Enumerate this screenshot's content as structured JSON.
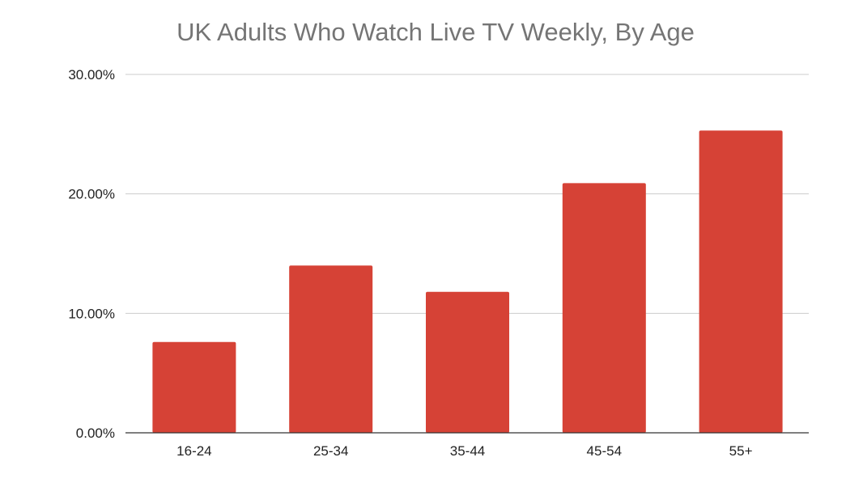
{
  "chart_data": {
    "type": "bar",
    "title": "UK Adults Who Watch Live TV Weekly, By Age",
    "xlabel": "",
    "ylabel": "",
    "categories": [
      "16-24",
      "25-34",
      "35-44",
      "45-54",
      "55+"
    ],
    "values": [
      7.6,
      14.0,
      11.8,
      20.9,
      25.3
    ],
    "ylim": [
      0,
      30
    ],
    "yticks": [
      0,
      10,
      20,
      30
    ],
    "ytick_labels": [
      "0.00%",
      "10.00%",
      "20.00%",
      "30.00%"
    ],
    "grid": true,
    "legend": "none",
    "bar_color": "#d64236",
    "grid_color": "#cccccc",
    "axis_color": "#333333"
  }
}
